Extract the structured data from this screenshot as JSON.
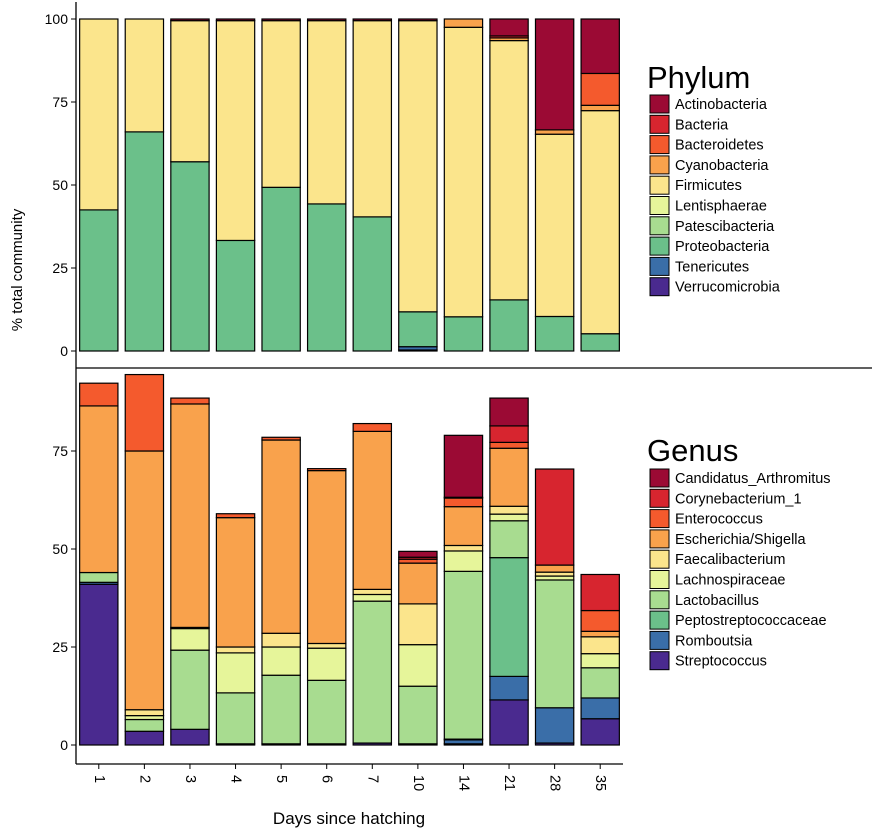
{
  "chart_data": {
    "type": "bar",
    "stacked": true,
    "xlabel": "Days since hatching",
    "ylabel": "% total community",
    "categories": [
      "1",
      "2",
      "3",
      "4",
      "5",
      "6",
      "7",
      "10",
      "14",
      "21",
      "28",
      "35"
    ],
    "panels": [
      {
        "legend_title": "Phylum",
        "ylim": [
          0,
          100
        ],
        "yticks": [
          0,
          25,
          50,
          75,
          100
        ],
        "legend_position": "right",
        "series": [
          {
            "name": "Verrucomicrobia",
            "color": "#4a2a8f",
            "values": [
              0,
              0,
              0,
              0,
              0,
              0,
              0,
              0.3,
              0,
              0,
              0,
              0
            ]
          },
          {
            "name": "Tenericutes",
            "color": "#3a6ea8",
            "values": [
              0,
              0,
              0,
              0,
              0,
              0,
              0,
              1.0,
              0,
              0,
              0,
              0
            ]
          },
          {
            "name": "Proteobacteria",
            "color": "#6bc08a",
            "values": [
              42.5,
              66,
              57,
              33.3,
              49.3,
              44.3,
              40.4,
              10.5,
              10.3,
              15.4,
              10.4,
              5.2
            ]
          },
          {
            "name": "Patescibacteria",
            "color": "#a8dc90",
            "values": [
              0,
              0,
              0,
              0,
              0,
              0,
              0,
              0,
              0,
              0,
              0,
              0
            ]
          },
          {
            "name": "Lentisphaerae",
            "color": "#e6f59a",
            "values": [
              0,
              0,
              0,
              0,
              0,
              0,
              0,
              0,
              0,
              0,
              0,
              0
            ]
          },
          {
            "name": "Firmicutes",
            "color": "#fbe58c",
            "values": [
              57.5,
              34,
              42.5,
              66.2,
              50.2,
              55.2,
              59.1,
              87.7,
              87.2,
              78.1,
              54.9,
              67.2
            ]
          },
          {
            "name": "Cyanobacteria",
            "color": "#f9a24c",
            "values": [
              0,
              0,
              0,
              0,
              0,
              0,
              0,
              0,
              2.5,
              0.8,
              1.3,
              1.6
            ]
          },
          {
            "name": "Bacteroidetes",
            "color": "#f45a2d",
            "values": [
              0,
              0,
              0,
              0,
              0,
              0,
              0,
              0,
              0,
              0,
              0,
              9.6
            ]
          },
          {
            "name": "Bacteria",
            "color": "#d7252f",
            "values": [
              0,
              0,
              0,
              0,
              0,
              0,
              0,
              0,
              0,
              0.6,
              0,
              0
            ]
          },
          {
            "name": "Actinobacteria",
            "color": "#9b0a34",
            "values": [
              0,
              0,
              0.5,
              0.5,
              0.5,
              0.5,
              0.5,
              0.5,
              0,
              5.1,
              33.4,
              16.4
            ]
          }
        ]
      },
      {
        "legend_title": "Genus",
        "ylim": [
          0,
          96
        ],
        "yticks": [
          0,
          25,
          50,
          75
        ],
        "legend_position": "right",
        "series": [
          {
            "name": "Streptococcus",
            "color": "#4a2a8f",
            "values": [
              41,
              3.5,
              4,
              0.3,
              0.3,
              0.3,
              0.5,
              0.3,
              0.3,
              11.5,
              0.5,
              6.7
            ]
          },
          {
            "name": "Romboutsia",
            "color": "#3a6ea8",
            "values": [
              0.5,
              0,
              0,
              0,
              0,
              0,
              0,
              0,
              1.0,
              6.0,
              9.0,
              5.3
            ]
          },
          {
            "name": "Peptostreptococcaceae",
            "color": "#6bc08a",
            "values": [
              0,
              0,
              0,
              0,
              0,
              0,
              0,
              0,
              0.2,
              30.3,
              0,
              0
            ]
          },
          {
            "name": "Lactobacillus",
            "color": "#a8dc90",
            "values": [
              2.5,
              3,
              20.2,
              13,
              17.5,
              16.2,
              36.2,
              14.7,
              42.8,
              9.4,
              32.6,
              7.7
            ]
          },
          {
            "name": "Lachnospiraceae",
            "color": "#e6f59a",
            "values": [
              0,
              1,
              5.5,
              10.2,
              7.2,
              8.2,
              1.7,
              10.6,
              5.2,
              1.7,
              1.0,
              3.6
            ]
          },
          {
            "name": "Faecalibacterium",
            "color": "#fbe58c",
            "values": [
              0,
              1.5,
              0.3,
              1.5,
              3.5,
              1.2,
              1.3,
              10.4,
              1.4,
              2.0,
              1.0,
              4.3
            ]
          },
          {
            "name": "Escherichia/Shigella",
            "color": "#f9a24c",
            "values": [
              42.5,
              66,
              57,
              33,
              49.3,
              44.1,
              40.3,
              10.4,
              9.9,
              14.8,
              1.8,
              1.4
            ]
          },
          {
            "name": "Enterococcus",
            "color": "#f45a2d",
            "values": [
              5.8,
              19.5,
              1.5,
              1.0,
              0.7,
              0.5,
              2.0,
              1.0,
              2.2,
              1.5,
              0,
              5.3
            ]
          },
          {
            "name": "Corynebacterium_1",
            "color": "#d7252f",
            "values": [
              0,
              0,
              0,
              0,
              0,
              0,
              0,
              0.5,
              0.2,
              4.2,
              24.5,
              9.2
            ]
          },
          {
            "name": "Candidatus_Arthromitus",
            "color": "#9b0a34",
            "values": [
              0,
              0,
              0,
              0,
              0,
              0,
              0,
              1.5,
              15.8,
              7.1,
              0,
              0
            ]
          }
        ]
      }
    ]
  }
}
